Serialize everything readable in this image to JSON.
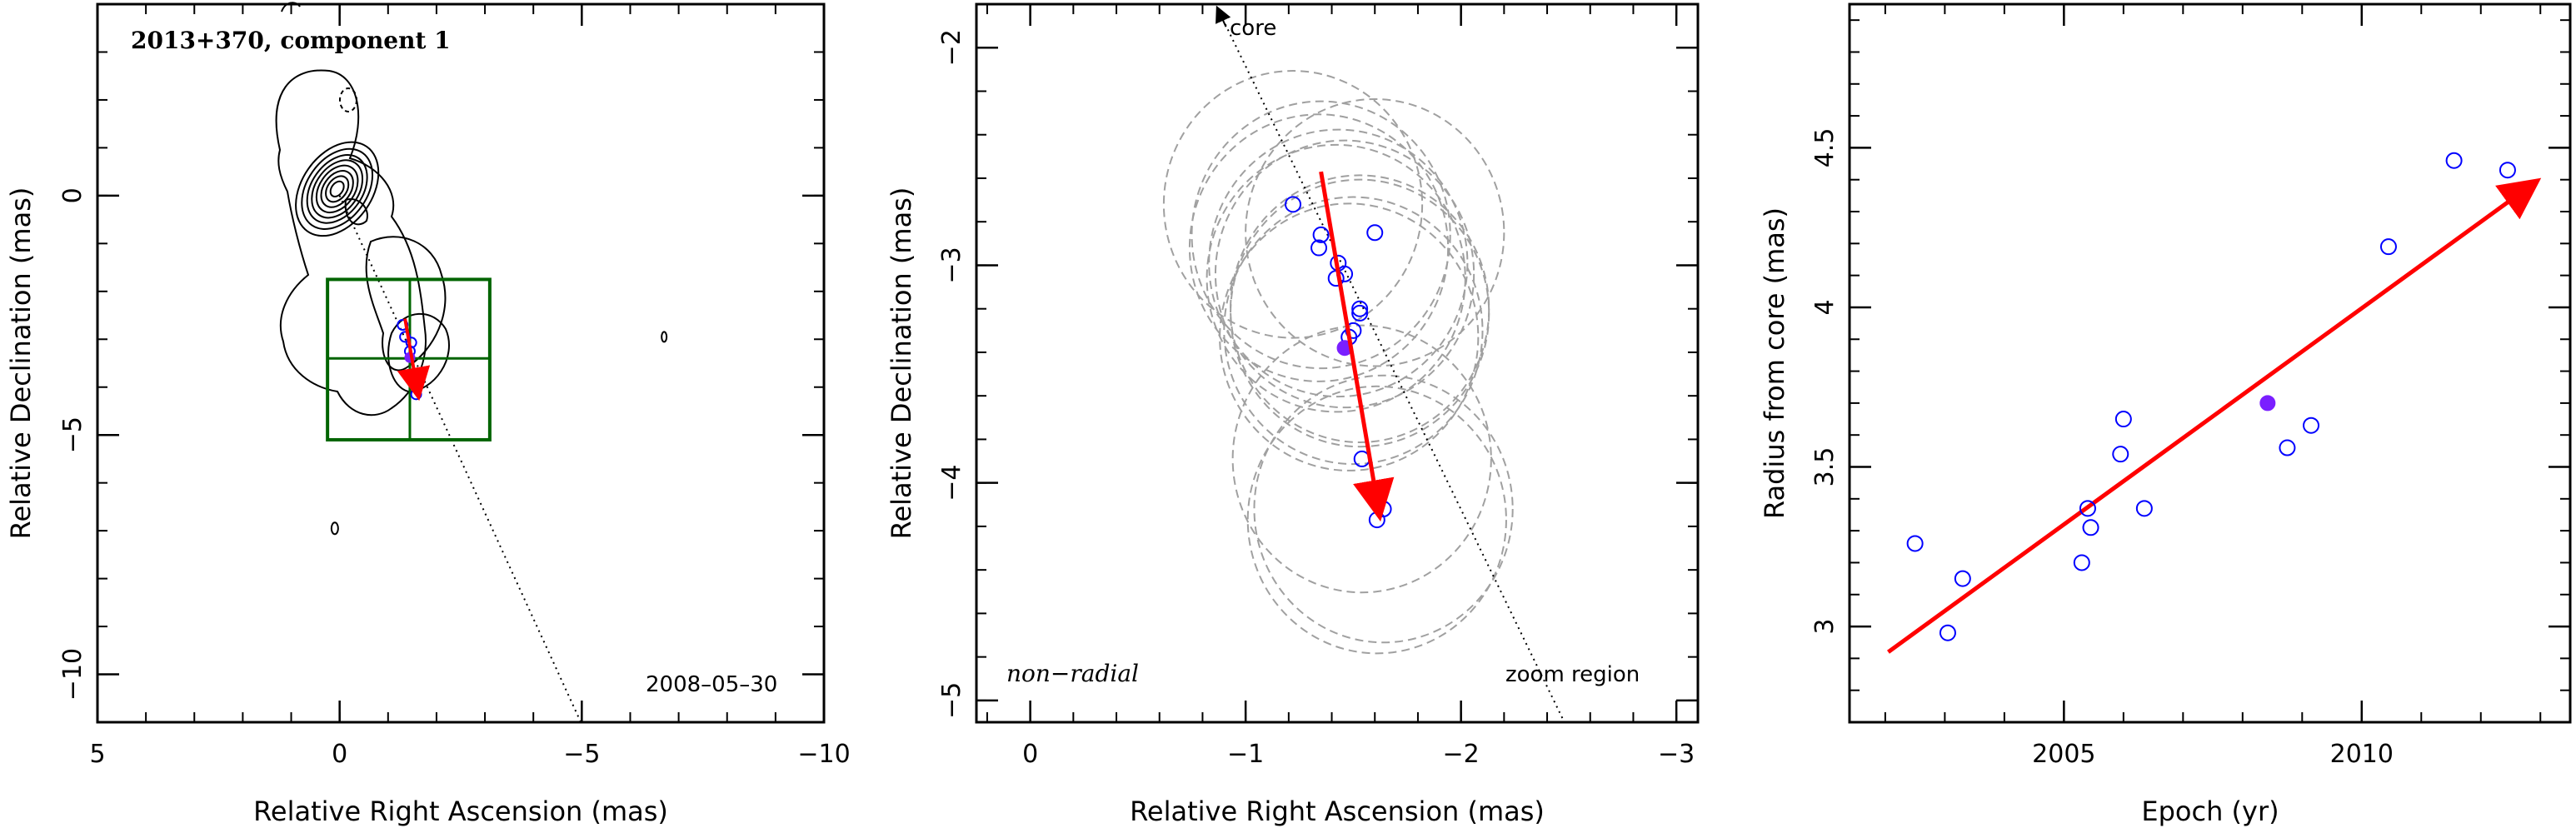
{
  "colors": {
    "frame": "#000000",
    "data_point": "#0000ff",
    "highlight_point": "#7a1fff",
    "arrow": "#ff0000",
    "box": "#006400",
    "ellipse": "#a0a0a0"
  },
  "chart_data": [
    {
      "type": "contour",
      "title": "2013+370, component 1",
      "epoch_label": "2008–05–30",
      "xlabel": "Relative Right Ascension (mas)",
      "ylabel": "Relative Declination (mas)",
      "xlim": [
        5,
        -10
      ],
      "ylim": [
        -11,
        4
      ],
      "xticks": [
        5,
        0,
        -5,
        -10
      ],
      "yticks": [
        0,
        -5,
        -10
      ],
      "tick_labels_x": [
        "5",
        "0",
        "−5",
        "−10"
      ],
      "tick_labels_y": [
        "0",
        "−5",
        "−10"
      ],
      "core": [
        0,
        0
      ],
      "component_points": [
        {
          "x": -1.3,
          "y": -2.7
        },
        {
          "x": -1.35,
          "y": -2.95
        },
        {
          "x": -1.48,
          "y": -3.07
        },
        {
          "x": -1.45,
          "y": -3.25
        },
        {
          "x": -1.55,
          "y": -3.9
        },
        {
          "x": -1.58,
          "y": -4.15
        }
      ],
      "highlight_point": {
        "x": -1.45,
        "y": -3.38
      },
      "motion_arrow": {
        "from": [
          -1.35,
          -2.57
        ],
        "to": [
          -1.62,
          -4.15
        ]
      },
      "zoom_box": {
        "x": [
          0.25,
          -3.1
        ],
        "y": [
          -1.75,
          -5.1
        ],
        "grid_x": -1.45,
        "grid_y": -3.4
      }
    },
    {
      "type": "scatter",
      "xlabel": "Relative Right Ascension (mas)",
      "ylabel": "Relative Declination (mas)",
      "xlim": [
        0.25,
        -3.1
      ],
      "ylim": [
        -5.1,
        -1.8
      ],
      "xticks": [
        0,
        -1,
        -2,
        -3
      ],
      "yticks": [
        -2,
        -3,
        -4,
        -5
      ],
      "tick_labels_x": [
        "0",
        "−1",
        "−2",
        "−3"
      ],
      "tick_labels_y": [
        "−2",
        "−3",
        "−4",
        "−5"
      ],
      "annotations": {
        "core": "core",
        "zoom": "zoom region",
        "motion": "non−radial"
      },
      "points": [
        {
          "x": -1.22,
          "y": -2.72
        },
        {
          "x": -1.35,
          "y": -2.86
        },
        {
          "x": -1.34,
          "y": -2.92
        },
        {
          "x": -1.6,
          "y": -2.85
        },
        {
          "x": -1.43,
          "y": -2.99
        },
        {
          "x": -1.46,
          "y": -3.04
        },
        {
          "x": -1.42,
          "y": -3.06
        },
        {
          "x": -1.53,
          "y": -3.2
        },
        {
          "x": -1.53,
          "y": -3.22
        },
        {
          "x": -1.5,
          "y": -3.3
        },
        {
          "x": -1.48,
          "y": -3.33
        },
        {
          "x": -1.54,
          "y": -3.89
        },
        {
          "x": -1.64,
          "y": -4.12
        },
        {
          "x": -1.61,
          "y": -4.17
        }
      ],
      "highlight_point": {
        "x": -1.46,
        "y": -3.38
      },
      "motion_arrow": {
        "from": [
          -1.35,
          -2.57
        ],
        "to": [
          -1.62,
          -4.14
        ]
      },
      "core_direction_line": {
        "from": [
          -0.87,
          -1.82
        ],
        "to": [
          -2.48,
          -5.1
        ]
      }
    },
    {
      "type": "scatter",
      "xlabel": "Epoch (yr)",
      "ylabel": "Radius from core (mas)",
      "xlim": [
        2001.4,
        2013.5
      ],
      "ylim": [
        2.7,
        4.95
      ],
      "xticks": [
        2005,
        2010
      ],
      "yticks": [
        3,
        3.5,
        4,
        4.5
      ],
      "tick_labels_x": [
        "2005",
        "2010"
      ],
      "tick_labels_y": [
        "3",
        "3.5",
        "4",
        "4.5"
      ],
      "points": [
        {
          "x": 2002.5,
          "y": 3.26
        },
        {
          "x": 2003.05,
          "y": 2.98
        },
        {
          "x": 2003.3,
          "y": 3.15
        },
        {
          "x": 2005.3,
          "y": 3.2
        },
        {
          "x": 2005.4,
          "y": 3.37
        },
        {
          "x": 2005.45,
          "y": 3.31
        },
        {
          "x": 2005.95,
          "y": 3.54
        },
        {
          "x": 2006.0,
          "y": 3.65
        },
        {
          "x": 2006.35,
          "y": 3.37
        },
        {
          "x": 2008.75,
          "y": 3.56
        },
        {
          "x": 2009.15,
          "y": 3.63
        },
        {
          "x": 2010.45,
          "y": 4.19
        },
        {
          "x": 2011.55,
          "y": 4.46
        },
        {
          "x": 2012.45,
          "y": 4.43
        }
      ],
      "highlight_point": {
        "x": 2008.42,
        "y": 3.7
      },
      "fit_arrow": {
        "from": [
          2002.05,
          2.92
        ],
        "to": [
          2012.9,
          4.39
        ]
      }
    }
  ]
}
